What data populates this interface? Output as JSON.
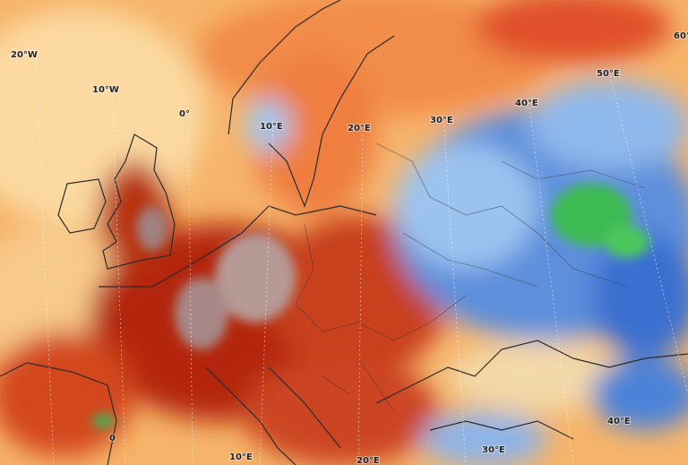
{
  "map": {
    "grid_labels": [
      "20°W",
      "10°W",
      "0°",
      "10°E",
      "20°E",
      "30°E",
      "40°E",
      "50°E",
      "60°",
      "0",
      "10°E",
      "20°E",
      "30°E",
      "40°E"
    ]
  }
}
